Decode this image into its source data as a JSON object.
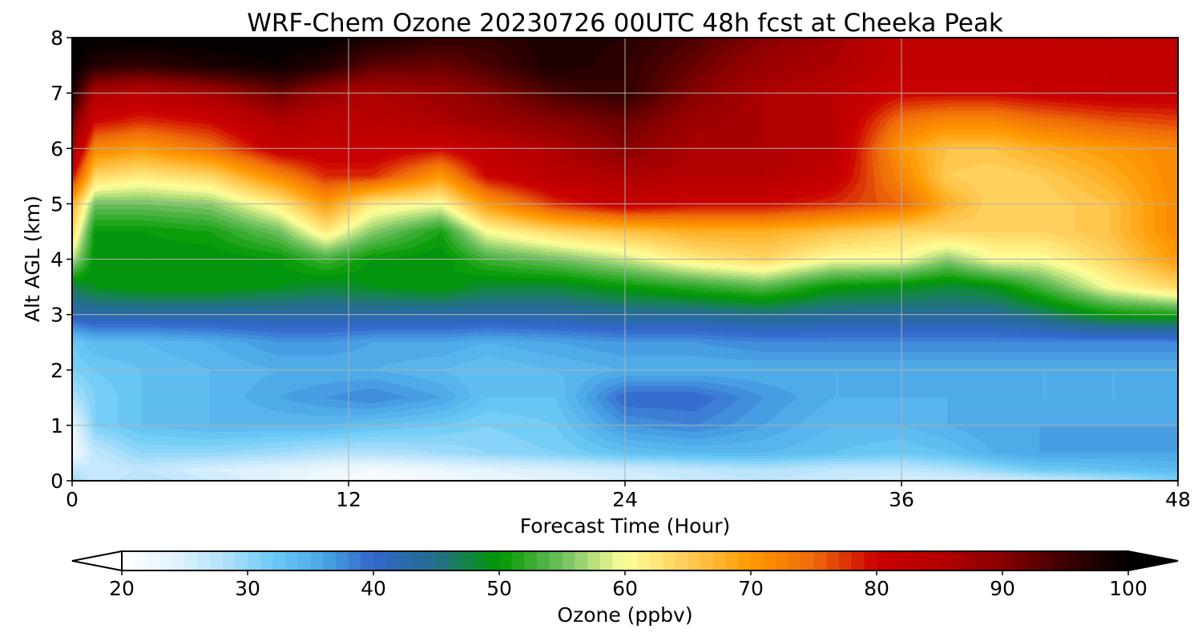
{
  "chart_data": {
    "type": "heatmap",
    "title": "WRF-Chem Ozone  20230726 00UTC 48h fcst at Cheeka Peak",
    "xlabel": "Forecast Time (Hour)",
    "ylabel": "Alt AGL (km)",
    "xlim": [
      0,
      48
    ],
    "ylim": [
      0,
      8
    ],
    "x_ticks": [
      0,
      12,
      24,
      36,
      48
    ],
    "y_ticks": [
      0,
      1,
      2,
      3,
      4,
      5,
      6,
      7,
      8
    ],
    "grid": true,
    "colorbar": {
      "label": "Ozone  (ppbv)",
      "min": 20,
      "max": 100,
      "ticks": [
        20,
        30,
        40,
        50,
        60,
        70,
        80,
        90,
        100
      ],
      "extend": "both",
      "orientation": "horizontal",
      "placement": "bottom",
      "color_stops": [
        [
          20,
          "#ffffff"
        ],
        [
          24,
          "#e4f3fd"
        ],
        [
          28,
          "#b4e2fb"
        ],
        [
          32,
          "#6ccbf6"
        ],
        [
          36,
          "#4aa6e6"
        ],
        [
          40,
          "#3366cc"
        ],
        [
          45,
          "#236f8c"
        ],
        [
          50,
          "#009900"
        ],
        [
          55,
          "#6ec060"
        ],
        [
          60,
          "#ffff9a"
        ],
        [
          65,
          "#ffcc55"
        ],
        [
          70,
          "#ff9900"
        ],
        [
          75,
          "#ee6a0a"
        ],
        [
          80,
          "#cc0000"
        ],
        [
          85,
          "#b50000"
        ],
        [
          90,
          "#880000"
        ],
        [
          95,
          "#3c0000"
        ],
        [
          100,
          "#000000"
        ]
      ]
    },
    "x": [
      0,
      1,
      3,
      6,
      9,
      11,
      13,
      16,
      18,
      21,
      24,
      27,
      30,
      33,
      36,
      38,
      40,
      42,
      45,
      48
    ],
    "y": [
      0,
      0.2,
      0.5,
      1,
      1.5,
      2,
      2.5,
      3,
      3.5,
      4,
      4.5,
      5,
      5.5,
      6,
      6.5,
      7,
      7.5,
      8
    ],
    "z": [
      [
        30,
        26,
        28,
        26,
        24,
        22,
        21,
        22,
        23,
        24,
        25,
        26,
        27,
        26,
        25,
        25,
        25,
        26,
        28,
        31
      ],
      [
        27,
        26,
        27,
        25,
        24,
        23,
        22,
        23,
        24,
        25,
        26,
        27,
        28,
        27,
        27,
        28,
        30,
        32,
        33,
        34
      ],
      [
        22,
        27,
        30,
        30,
        29,
        28,
        28,
        29,
        30,
        31,
        33,
        34,
        34,
        33,
        32,
        33,
        35,
        36,
        36,
        36
      ],
      [
        23,
        31,
        33,
        34,
        34,
        34,
        33,
        32,
        31,
        32,
        37,
        38,
        36,
        34,
        34,
        35,
        36,
        36,
        36,
        36
      ],
      [
        28,
        31,
        33,
        34,
        36,
        37,
        38,
        36,
        33,
        33,
        40,
        40,
        37,
        35,
        35,
        35,
        35,
        35,
        35,
        35
      ],
      [
        31,
        32,
        33,
        34,
        35,
        35,
        35,
        34,
        33,
        34,
        35,
        35,
        35,
        35,
        35,
        35,
        35,
        35,
        35,
        35
      ],
      [
        32,
        34,
        34,
        35,
        37,
        37,
        36,
        36,
        35,
        36,
        37,
        37,
        38,
        38,
        38,
        38,
        38,
        38,
        38,
        38
      ],
      [
        42,
        43,
        43,
        43,
        43,
        43,
        43,
        43,
        43,
        43,
        44,
        44,
        45,
        44,
        44,
        44,
        44,
        46,
        50,
        51
      ],
      [
        47,
        49,
        50,
        50,
        49,
        48,
        49,
        50,
        48,
        48,
        50,
        52,
        54,
        50,
        49,
        48,
        49,
        53,
        60,
        64
      ],
      [
        58,
        49,
        49,
        49,
        50,
        53,
        50,
        49,
        53,
        55,
        58,
        62,
        64,
        60,
        60,
        56,
        60,
        60,
        64,
        70
      ],
      [
        64,
        50,
        50,
        51,
        55,
        62,
        56,
        51,
        60,
        64,
        66,
        68,
        68,
        66,
        64,
        64,
        64,
        64,
        66,
        72
      ],
      [
        68,
        55,
        55,
        56,
        62,
        70,
        62,
        60,
        70,
        78,
        82,
        80,
        80,
        78,
        75,
        68,
        64,
        64,
        66,
        72
      ],
      [
        80,
        64,
        62,
        64,
        72,
        78,
        78,
        70,
        80,
        84,
        86,
        85,
        85,
        82,
        72,
        65,
        64,
        65,
        68,
        72
      ],
      [
        88,
        72,
        70,
        74,
        82,
        82,
        82,
        80,
        83,
        86,
        90,
        86,
        86,
        84,
        70,
        66,
        66,
        68,
        70,
        72
      ],
      [
        92,
        80,
        78,
        80,
        86,
        84,
        84,
        86,
        88,
        90,
        92,
        88,
        86,
        84,
        74,
        72,
        72,
        74,
        76,
        77
      ],
      [
        98,
        86,
        84,
        87,
        92,
        88,
        86,
        88,
        90,
        94,
        96,
        90,
        86,
        84,
        80,
        80,
        80,
        81,
        82,
        82
      ],
      [
        100,
        97,
        96,
        98,
        99,
        97,
        93,
        92,
        94,
        98,
        96,
        92,
        88,
        86,
        82,
        82,
        82,
        82,
        82,
        82
      ],
      [
        100,
        100,
        100,
        100,
        100,
        100,
        98,
        96,
        96,
        98,
        97,
        94,
        90,
        87,
        82,
        82,
        82,
        82,
        82,
        82
      ]
    ]
  }
}
